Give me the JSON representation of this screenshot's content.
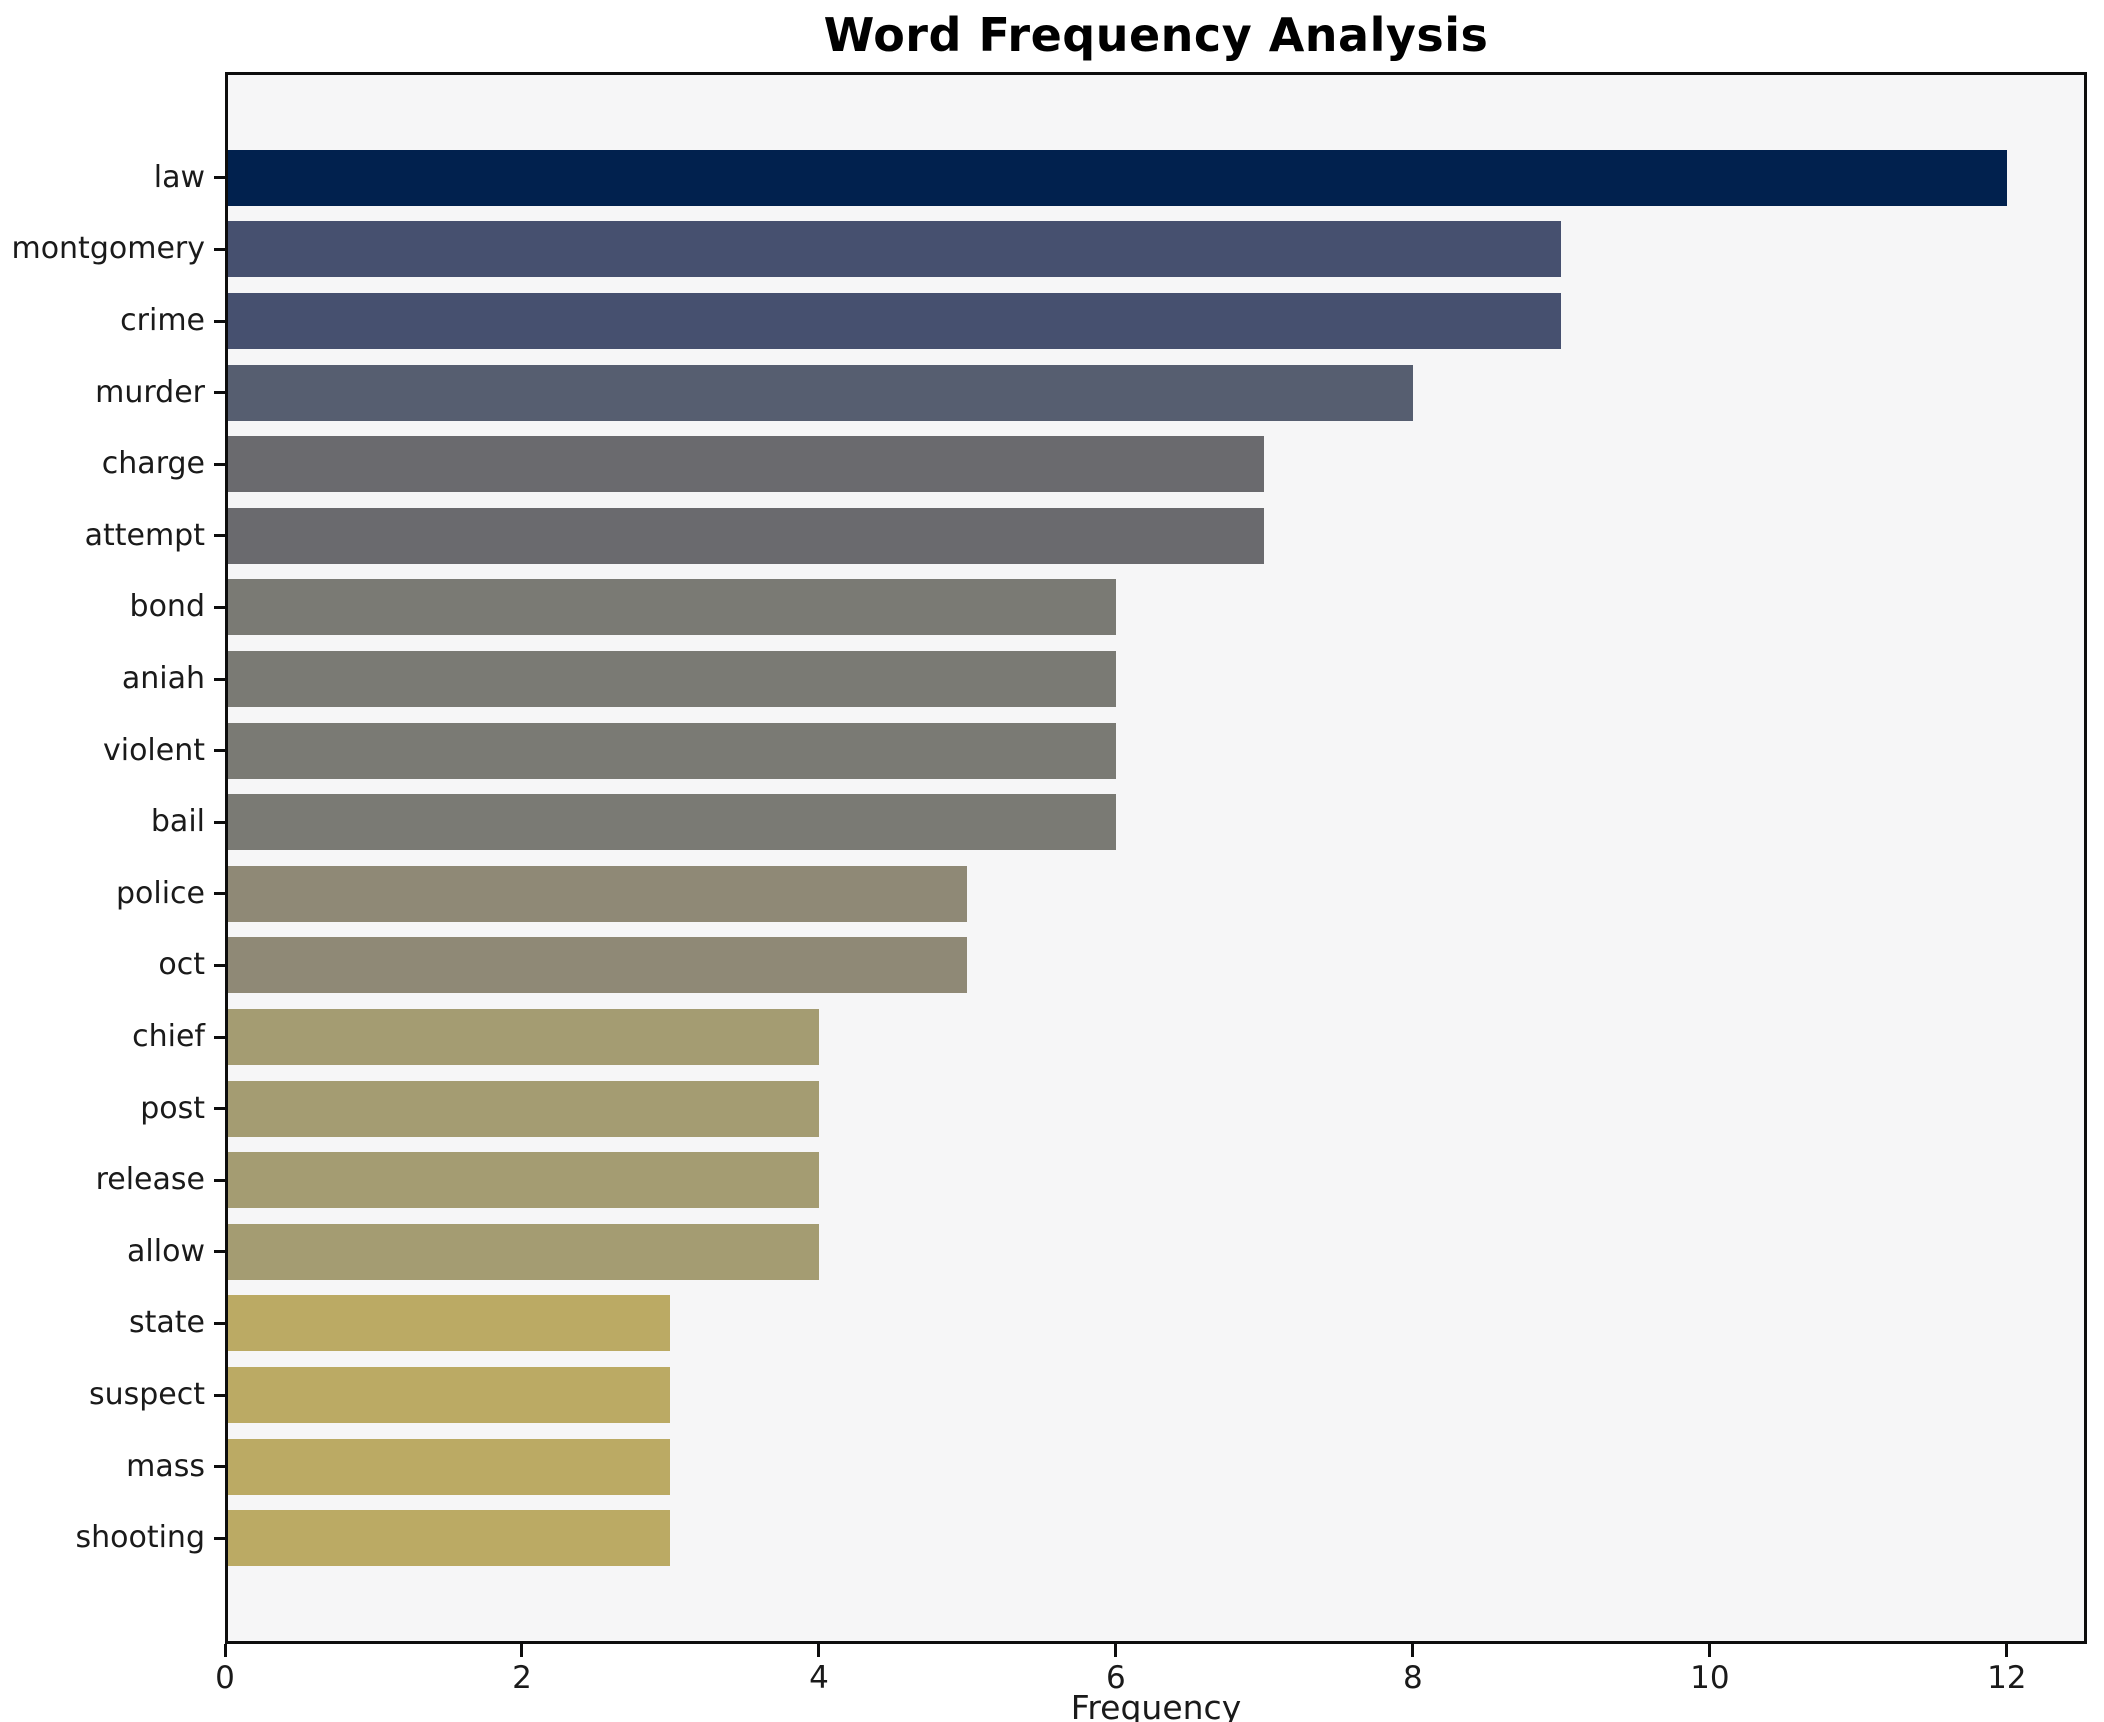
{
  "title": "Word Frequency Analysis",
  "chart_data": {
    "type": "bar",
    "orientation": "horizontal",
    "title": "Word Frequency Analysis",
    "xlabel": "Frequency",
    "ylabel": "",
    "categories": [
      "law",
      "montgomery",
      "crime",
      "murder",
      "charge",
      "attempt",
      "bond",
      "aniah",
      "violent",
      "bail",
      "police",
      "oct",
      "chief",
      "post",
      "release",
      "allow",
      "state",
      "suspect",
      "mass",
      "shooting"
    ],
    "values": [
      12,
      9,
      9,
      8,
      7,
      7,
      6,
      6,
      6,
      6,
      5,
      5,
      4,
      4,
      4,
      4,
      3,
      3,
      3,
      3
    ],
    "bar_colors": [
      "#01214e",
      "#46506f",
      "#46506f",
      "#565e70",
      "#6a6a6e",
      "#6a6a6e",
      "#7a7a74",
      "#7a7a74",
      "#7a7a74",
      "#7a7a74",
      "#8f8976",
      "#8f8976",
      "#a49c72",
      "#a49c72",
      "#a49c72",
      "#a49c72",
      "#bbaa64",
      "#bbaa64",
      "#bbaa64",
      "#bbaa64"
    ],
    "xlim": [
      0,
      12.54
    ],
    "x_ticks": [
      0,
      2,
      4,
      6,
      8,
      10,
      12
    ],
    "grid": false,
    "legend": null,
    "plot_bg": "#f6f6f7",
    "fig_bg": "#ffffff",
    "spine_color": "#0d0d0d"
  }
}
